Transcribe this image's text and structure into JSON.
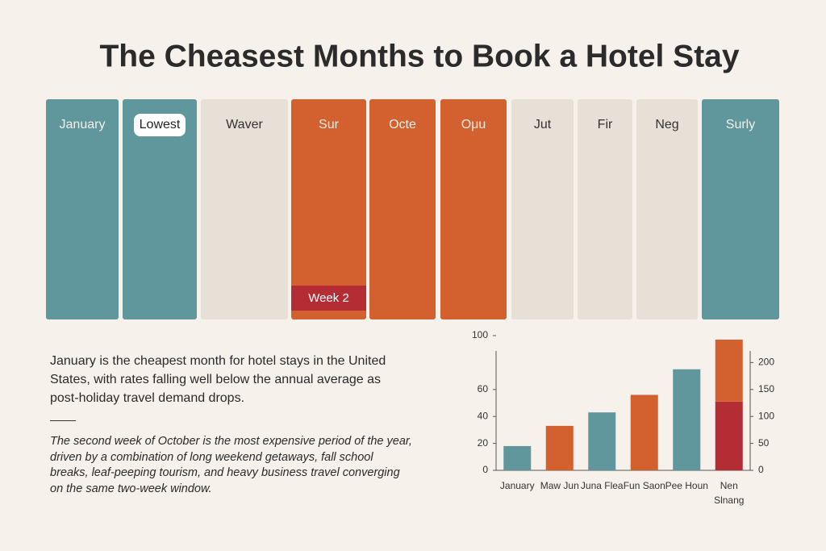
{
  "header": {
    "title": "The Cheasest Months to Book a Hotel Stay"
  },
  "panels": [
    {
      "label": "January",
      "color": "#5f979d"
    },
    {
      "label": "Lowest",
      "color": "#5f979d"
    },
    {
      "label": "Waver",
      "color": "#e7e0d7"
    },
    {
      "label": "Sur",
      "color": "#d3602f",
      "band": "Week 2",
      "band_color": "#b42c34"
    },
    {
      "label": "Octe",
      "color": "#d3602f"
    },
    {
      "label": "Oμu",
      "color": "#d3602f"
    },
    {
      "label": "Jut",
      "color": "#e7e0d7"
    },
    {
      "label": "Fir",
      "color": "#e7e0d7"
    },
    {
      "label": "Neg",
      "color": "#e7e0d7"
    },
    {
      "label": "Surly",
      "color": "#5f979d"
    }
  ],
  "text": {
    "summary": "January is the cheapest month for hotel stays in the United States, with rates falling well below the annual average as post-holiday travel demand drops.",
    "detail": "The second week of October is the most expensive period of the year, driven by a combination of long weekend getaways, fall school breaks, leaf-peeping tourism, and heavy business travel converging on the same two-week window."
  },
  "chart_data": {
    "type": "bar",
    "categories": [
      "January",
      "Maw Jun",
      "Juna Flea",
      "Fun Saon",
      "Pee Houn",
      "Nen Slnang"
    ],
    "series": [
      {
        "values": [
          18,
          33,
          43,
          56,
          75,
          51
        ],
        "colors": [
          "#5f979d",
          "#d3602f",
          "#5f979d",
          "#d3602f",
          "#5f979d",
          "#b42c34"
        ]
      },
      {
        "values": [
          null,
          null,
          null,
          null,
          null,
          46
        ],
        "color": "#d3602f"
      }
    ],
    "ylim": [
      0,
      100
    ],
    "yticks": [
      0,
      20,
      40,
      60,
      100
    ],
    "y2lim": [
      0,
      250
    ],
    "y2ticks": [
      0,
      50,
      100,
      150,
      200
    ]
  }
}
